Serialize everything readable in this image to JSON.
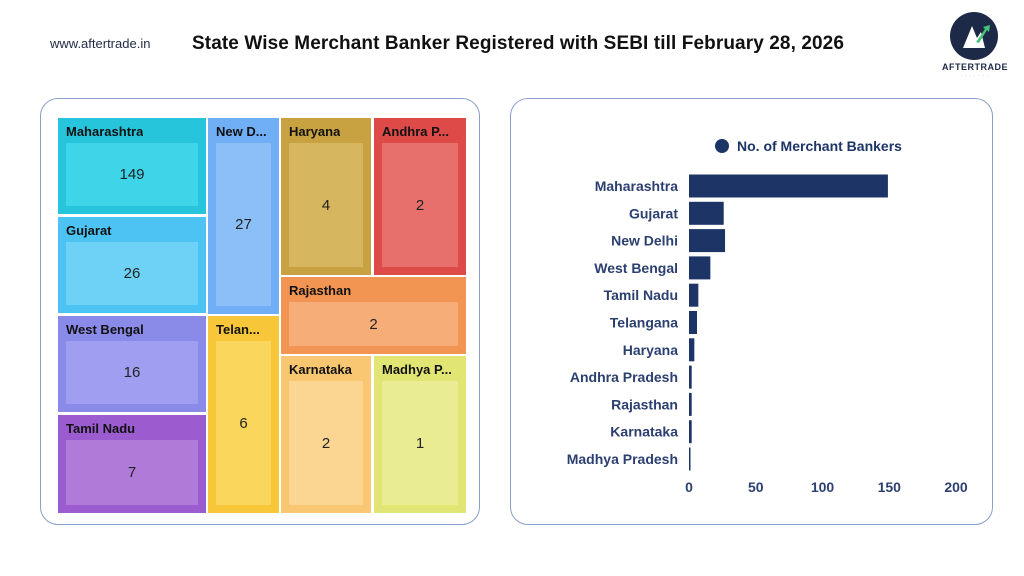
{
  "header": {
    "site_url": "www.aftertrade.in",
    "title": "State Wise Merchant Banker Registered with SEBI till February 28, 2026"
  },
  "logo": {
    "text": "AFTERTRADE",
    "colors": {
      "circle": "#1d2a47",
      "arrow": "#ffffff",
      "accent": "#49c37b"
    }
  },
  "chart_data": [
    {
      "type": "treemap",
      "items": [
        {
          "label": "Maharashtra",
          "value": 149,
          "color": "#26c5dc",
          "inner": "#3fd5e8"
        },
        {
          "label": "Gujarat",
          "value": 26,
          "color": "#4cc3f2",
          "inner": "#6dd2f6"
        },
        {
          "label": "West Bengal",
          "value": 16,
          "color": "#8a8ae8",
          "inner": "#a09ef0"
        },
        {
          "label": "Tamil Nadu",
          "value": 7,
          "color": "#9b5cd0",
          "inner": "#b07ad8"
        },
        {
          "label": "New D...",
          "value": 27,
          "color": "#70aef6",
          "inner": "#8cbef8"
        },
        {
          "label": "Telan...",
          "value": 6,
          "color": "#f7c739",
          "inner": "#fbd65c"
        },
        {
          "label": "Haryana",
          "value": 4,
          "color": "#c8a240",
          "inner": "#d6b65e"
        },
        {
          "label": "Andhra P...",
          "value": 2,
          "color": "#dd4a48",
          "inner": "#e7706d"
        },
        {
          "label": "Rajasthan",
          "value": 2,
          "color": "#f39552",
          "inner": "#f6ad78"
        },
        {
          "label": "Karnataka",
          "value": 2,
          "color": "#f9c771",
          "inner": "#fbd592"
        },
        {
          "label": "Madhya P...",
          "value": 1,
          "color": "#e1e574",
          "inner": "#e9ec92"
        }
      ]
    },
    {
      "type": "bar",
      "orientation": "horizontal",
      "legend": "No. of Merchant Bankers",
      "legend_position": "top",
      "color": "#1d3466",
      "categories": [
        "Maharashtra",
        "Gujarat",
        "New Delhi",
        "West Bengal",
        "Tamil Nadu",
        "Telangana",
        "Haryana",
        "Andhra Pradesh",
        "Rajasthan",
        "Karnataka",
        "Madhya Pradesh"
      ],
      "values": [
        149,
        26,
        27,
        16,
        7,
        6,
        4,
        2,
        2,
        2,
        1
      ],
      "xlim": [
        0,
        200
      ],
      "xticks": [
        0,
        50,
        100,
        150,
        200
      ],
      "grid": false
    }
  ]
}
